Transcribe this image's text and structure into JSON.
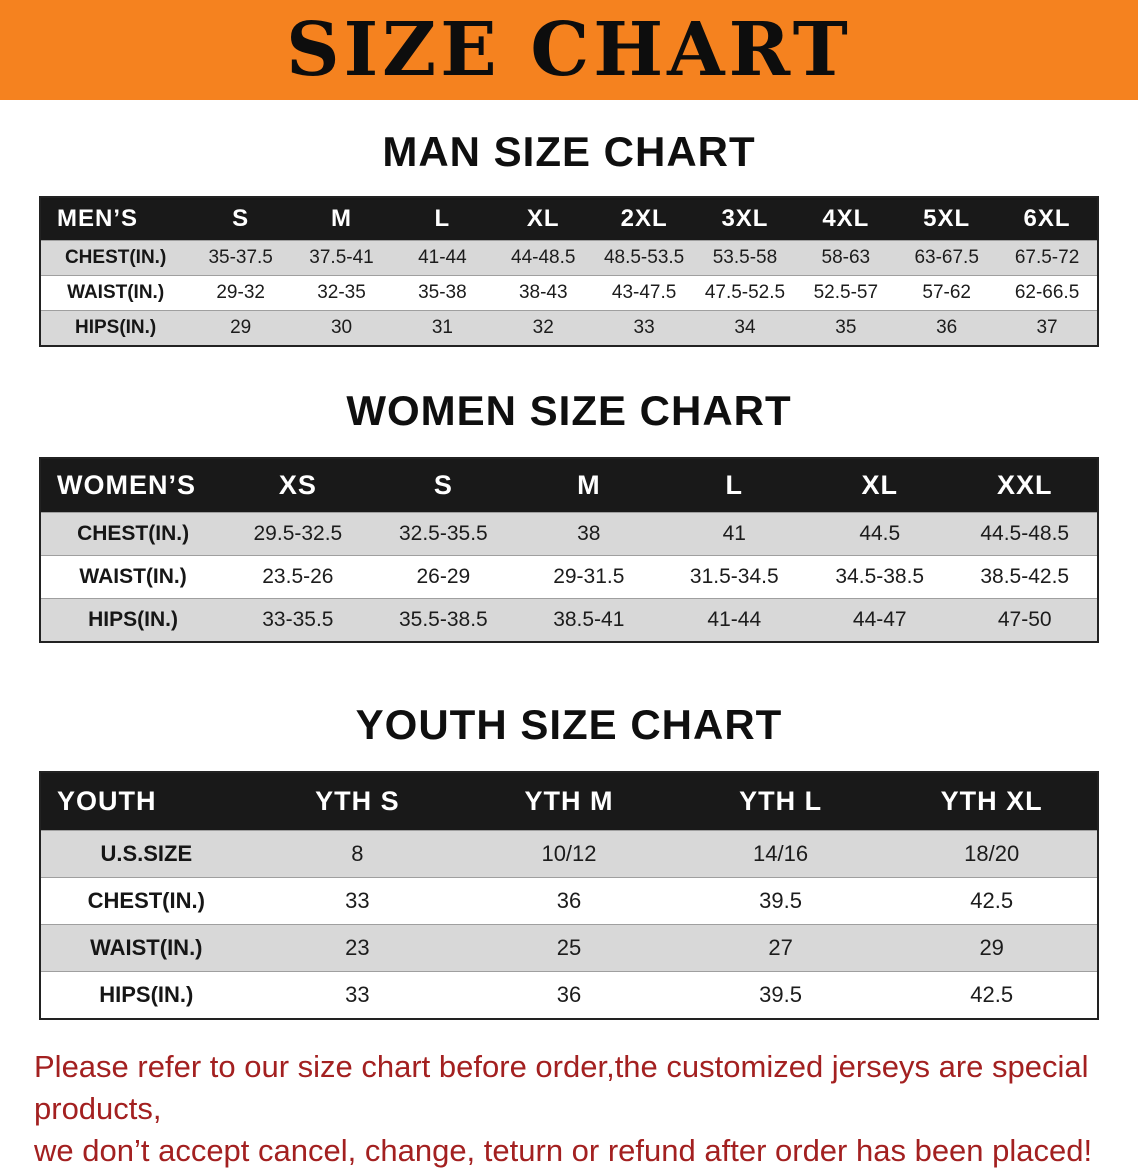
{
  "banner": {
    "title": "SIZE CHART"
  },
  "sections": [
    {
      "heading": "MAN SIZE CHART",
      "table": {
        "header": [
          "MEN’S",
          "S",
          "M",
          "L",
          "XL",
          "2XL",
          "3XL",
          "4XL",
          "5XL",
          "6XL"
        ],
        "rows": [
          [
            "CHEST(IN.)",
            "35-37.5",
            "37.5-41",
            "41-44",
            "44-48.5",
            "48.5-53.5",
            "53.5-58",
            "58-63",
            "63-67.5",
            "67.5-72"
          ],
          [
            "WAIST(IN.)",
            "29-32",
            "32-35",
            "35-38",
            "38-43",
            "43-47.5",
            "47.5-52.5",
            "52.5-57",
            "57-62",
            "62-66.5"
          ],
          [
            "HIPS(IN.)",
            "29",
            "30",
            "31",
            "32",
            "33",
            "34",
            "35",
            "36",
            "37"
          ]
        ]
      }
    },
    {
      "heading": "WOMEN SIZE CHART",
      "table": {
        "header": [
          "WOMEN’S",
          "XS",
          "S",
          "M",
          "L",
          "XL",
          "XXL"
        ],
        "rows": [
          [
            "CHEST(IN.)",
            "29.5-32.5",
            "32.5-35.5",
            "38",
            "41",
            "44.5",
            "44.5-48.5"
          ],
          [
            "WAIST(IN.)",
            "23.5-26",
            "26-29",
            "29-31.5",
            "31.5-34.5",
            "34.5-38.5",
            "38.5-42.5"
          ],
          [
            "HIPS(IN.)",
            "33-35.5",
            "35.5-38.5",
            "38.5-41",
            "41-44",
            "44-47",
            "47-50"
          ]
        ]
      }
    },
    {
      "heading": "YOUTH SIZE CHART",
      "table": {
        "header": [
          "YOUTH",
          "YTH S",
          "YTH M",
          "YTH L",
          "YTH XL"
        ],
        "rows": [
          [
            "U.S.SIZE",
            "8",
            "10/12",
            "14/16",
            "18/20"
          ],
          [
            "CHEST(IN.)",
            "33",
            "36",
            "39.5",
            "42.5"
          ],
          [
            "WAIST(IN.)",
            "23",
            "25",
            "27",
            "29"
          ],
          [
            "HIPS(IN.)",
            "33",
            "36",
            "39.5",
            "42.5"
          ]
        ]
      }
    }
  ],
  "disclaimer": {
    "line1": "Please refer to our size chart before order,the customized jerseys are special products,",
    "line2": "we don’t accept cancel, change, teturn or refund after order has been placed!"
  },
  "colors": {
    "banner_bg": "#f5821f",
    "header_bg": "#191919",
    "stripe": "#d8d8d8",
    "disclaimer_text": "#a32020"
  }
}
